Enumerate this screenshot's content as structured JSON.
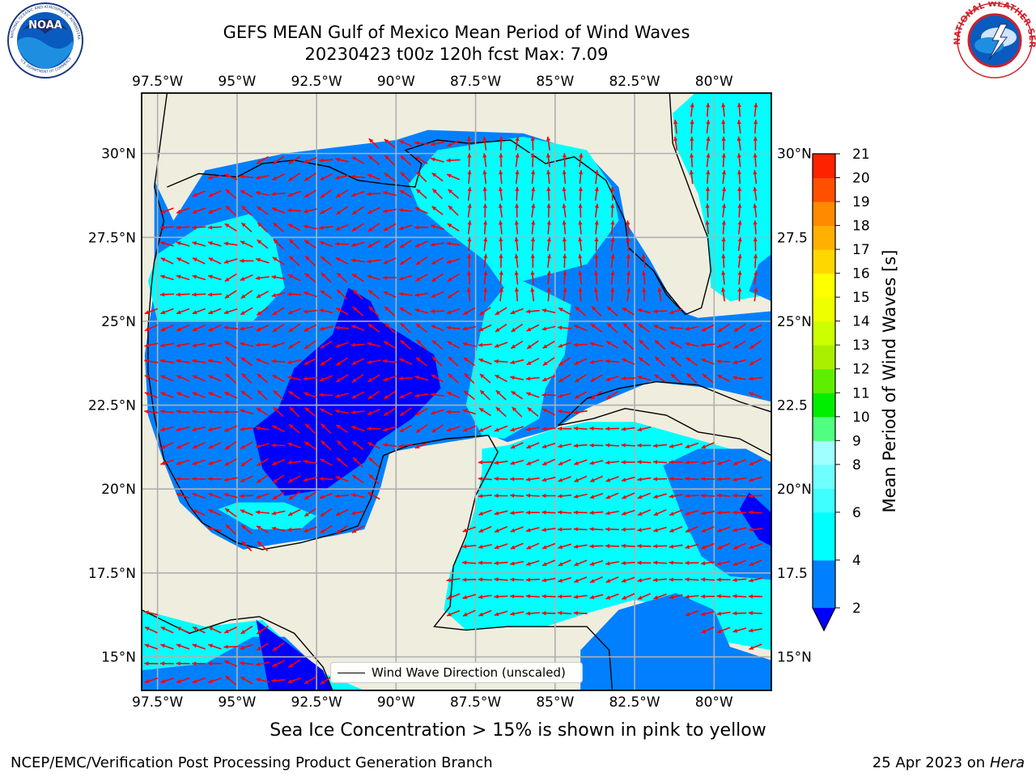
{
  "header": {
    "title_line1": "GEFS MEAN Gulf of Mexico Mean Period of Wind Waves",
    "title_line2": "20230423 t00z 120h fcst   Max: 7.09"
  },
  "logos": {
    "left": "NOAA",
    "left_ring_text": "NATIONAL OCEANIC AND ATMOSPHERIC ADMINISTRATION",
    "left_bottom_text": "U.S. DEPARTMENT OF COMMERCE",
    "right_ring_text": "NATIONAL WEATHER SERVICE"
  },
  "chart_data": {
    "type": "heatmap",
    "title": "GEFS MEAN Gulf of Mexico Mean Period of Wind Waves",
    "subtitle": "20230423 t00z 120h fcst   Max: 7.09",
    "max_value": 7.09,
    "x_ticks": [
      "97.5°W",
      "95°W",
      "92.5°W",
      "90°W",
      "87.5°W",
      "85°W",
      "82.5°W",
      "80°W"
    ],
    "y_ticks": [
      "30°N",
      "27.5°N",
      "25°N",
      "22.5°N",
      "20°N",
      "17.5°N",
      "15°N"
    ],
    "y_ticks_right": [
      "30°N",
      "27.5",
      "25°N",
      "22.5",
      "20°N",
      "17.5",
      "15°N"
    ],
    "lon_range": [
      -98,
      -78.2
    ],
    "lat_range": [
      14.0,
      31.8
    ],
    "grid": true,
    "legend": {
      "label": "Wind Wave Direction (unscaled)",
      "placement": "bottom-center"
    },
    "colorbar": {
      "label": "Mean Period of Wind Waves [s]",
      "ticks": [
        2,
        4,
        6,
        8,
        9,
        10,
        11,
        12,
        13,
        14,
        15,
        16,
        17,
        18,
        19,
        20,
        21
      ],
      "levels": [
        2,
        4,
        6,
        7,
        8,
        9,
        10,
        11,
        12,
        13,
        14,
        15,
        16,
        17,
        18,
        19,
        20,
        21
      ],
      "colors": [
        "#0080ff",
        "#00ffff",
        "#40ffff",
        "#70ffff",
        "#a0ffff",
        "#50ff80",
        "#00ee00",
        "#60ee00",
        "#aaee00",
        "#ccff00",
        "#eeff00",
        "#ffff00",
        "#ffd700",
        "#ffb000",
        "#ff8a00",
        "#ff5000",
        "#ff2200",
        "#ff0000"
      ],
      "under_color": "#0000ff",
      "extend": "min"
    },
    "series": [
      {
        "name": "blue",
        "period_s": 2.0
      },
      {
        "name": "navy",
        "period_s": 1.5
      },
      {
        "name": "cyan",
        "period_s": 4.5
      },
      {
        "name": "light-cyan",
        "period_s": 6.5
      }
    ]
  },
  "colors": {
    "land": "#efedde",
    "period_lt2": "#0000ff",
    "period_2_4": "#0080ff",
    "period_4_6": "#00ffff",
    "period_6_7": "#40ffff",
    "vector": "#ff0000",
    "coast": "#000000",
    "grid": "#b0b0b0"
  },
  "footer": {
    "sea_ice_note": "Sea Ice Concentration > 15% is shown in pink to yellow",
    "credit_left": "NCEP/EMC/Verification Post Processing Product Generation Branch",
    "credit_date": "25 Apr 2023 on ",
    "credit_machine": "Hera"
  }
}
